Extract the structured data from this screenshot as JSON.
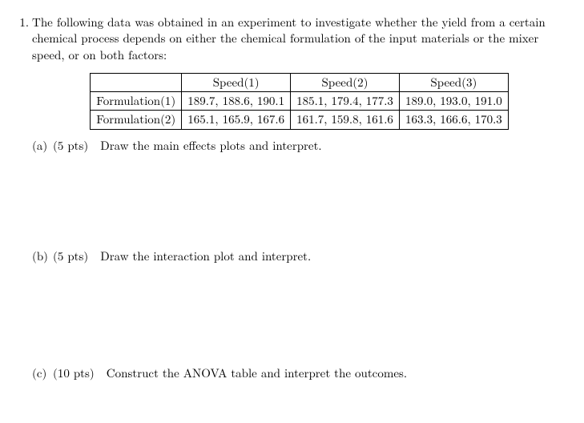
{
  "problem": {
    "number": "1.",
    "intro": "The following data was obtained in an experiment to investigate whether the yield from a certain chemical process depends on either the chemical formulation of the input materials or the mixer speed, or on both factors:"
  },
  "table": {
    "columns": [
      "",
      "Speed(1)",
      "Speed(2)",
      "Speed(3)"
    ],
    "rows": [
      {
        "label": "Formulation(1)",
        "cells": [
          "189.7, 188.6, 190.1",
          "185.1, 179.4, 177.3",
          "189.0, 193.0, 191.0"
        ]
      },
      {
        "label": "Formulation(2)",
        "cells": [
          "165.1, 165.9, 167.6",
          "161.7, 159.8, 161.6",
          "163.3, 166.6, 170.3"
        ]
      }
    ]
  },
  "parts": {
    "a": {
      "label": "(a)",
      "points": "(5 pts)",
      "text": "Draw the main effects plots and interpret."
    },
    "b": {
      "label": "(b)",
      "points": "(5 pts)",
      "text": "Draw the interaction plot and interpret."
    },
    "c": {
      "label": "(c)",
      "points": "(10 pts)",
      "text": "Construct the ANOVA table and interpret the outcomes."
    }
  }
}
